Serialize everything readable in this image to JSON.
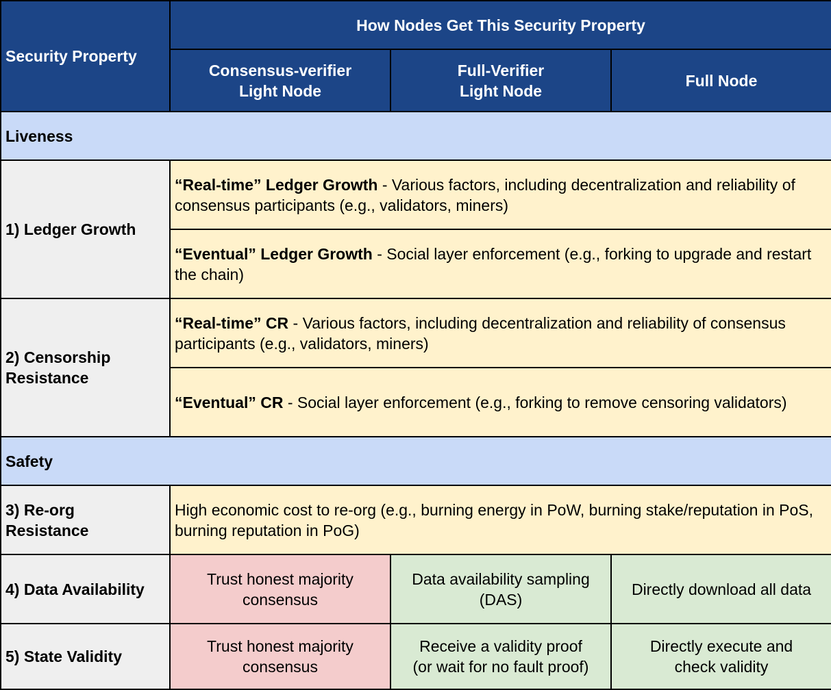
{
  "header": {
    "security_property": "Security Property",
    "how_nodes": "How Nodes Get This Security Property",
    "col1_line1": "Consensus-verifier",
    "col1_line2": "Light Node",
    "col2_line1": "Full-Verifier",
    "col2_line2": "Light Node",
    "col3": "Full Node"
  },
  "sections": {
    "liveness": "Liveness",
    "safety": "Safety"
  },
  "rows": {
    "ledger_growth": {
      "label": "1) Ledger Growth",
      "a_bold": "“Real-time” Ledger Growth",
      "a_text": " - Various factors, including decentralization and reliability of consensus participants (e.g., validators, miners)",
      "b_bold": "“Eventual” Ledger Growth",
      "b_text": " - Social layer enforcement (e.g., forking to upgrade and restart the chain)"
    },
    "censorship": {
      "label_line1": "2) Censorship",
      "label_line2": "Resistance",
      "a_bold": "“Real-time” CR",
      "a_text": " - Various factors, including decentralization and reliability of consensus participants (e.g., validators, miners)",
      "b_bold": "“Eventual” CR",
      "b_text": " - Social layer enforcement (e.g., forking to remove censoring validators)"
    },
    "reorg": {
      "label_line1": "3) Re-org",
      "label_line2": "Resistance",
      "text": "High economic cost to re-org (e.g., burning energy in PoW, burning stake/reputation in PoS, burning reputation in PoG)"
    },
    "data_availability": {
      "label": "4) Data Availability",
      "c1_line1": "Trust honest majority",
      "c1_line2": "consensus",
      "c2_line1": "Data availability sampling",
      "c2_line2": "(DAS)",
      "c3": "Directly download all data"
    },
    "state_validity": {
      "label": "5) State Validity",
      "c1_line1": "Trust honest majority",
      "c1_line2": "consensus",
      "c2_line1": "Receive a validity proof",
      "c2_line2": "(or wait for no fault proof)",
      "c3_line1": "Directly execute and",
      "c3_line2": "check validity"
    }
  },
  "colors": {
    "header_bg": "#1c4587",
    "section_bg": "#c9daf8",
    "property_bg": "#efefef",
    "shared_bg": "#fff2cc",
    "weak_bg": "#f4cccc",
    "strong_bg": "#d9ead3"
  }
}
